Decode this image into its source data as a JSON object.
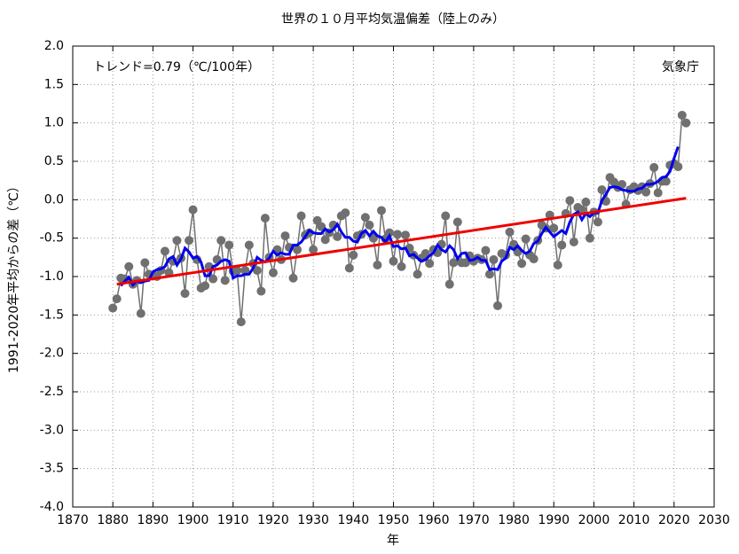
{
  "chart_data": {
    "type": "line",
    "title": "世界の１０月平均気温偏差（陸上のみ）",
    "annotations": [
      "トレンド=0.79（℃/100年）",
      "気象庁"
    ],
    "ylabel": "1991-2020年平均からの差（℃）",
    "xlabel": "年",
    "x": [
      1880,
      1881,
      1882,
      1883,
      1884,
      1885,
      1886,
      1887,
      1888,
      1889,
      1890,
      1891,
      1892,
      1893,
      1894,
      1895,
      1896,
      1897,
      1898,
      1899,
      1900,
      1901,
      1902,
      1903,
      1904,
      1905,
      1906,
      1907,
      1908,
      1909,
      1910,
      1911,
      1912,
      1913,
      1914,
      1915,
      1916,
      1917,
      1918,
      1919,
      1920,
      1921,
      1922,
      1923,
      1924,
      1925,
      1926,
      1927,
      1928,
      1929,
      1930,
      1931,
      1932,
      1933,
      1934,
      1935,
      1936,
      1937,
      1938,
      1939,
      1940,
      1941,
      1942,
      1943,
      1944,
      1945,
      1946,
      1947,
      1948,
      1949,
      1950,
      1951,
      1952,
      1953,
      1954,
      1955,
      1956,
      1957,
      1958,
      1959,
      1960,
      1961,
      1962,
      1963,
      1964,
      1965,
      1966,
      1967,
      1968,
      1969,
      1970,
      1971,
      1972,
      1973,
      1974,
      1975,
      1976,
      1977,
      1978,
      1979,
      1980,
      1981,
      1982,
      1983,
      1984,
      1985,
      1986,
      1987,
      1988,
      1989,
      1990,
      1991,
      1992,
      1993,
      1994,
      1995,
      1996,
      1997,
      1998,
      1999,
      2000,
      2001,
      2002,
      2003,
      2004,
      2005,
      2006,
      2007,
      2008,
      2009,
      2010,
      2011,
      2012,
      2013,
      2014,
      2015,
      2016,
      2017,
      2018,
      2019,
      2020,
      2021,
      2022,
      2023
    ],
    "series": [
      {
        "color": "#707070",
        "marker": true,
        "values": [
          -1.41,
          -1.29,
          -1.02,
          -1.03,
          -0.87,
          -1.1,
          -1.05,
          -1.48,
          -0.82,
          -0.97,
          -0.98,
          -1.0,
          -0.92,
          -0.67,
          -0.95,
          -0.8,
          -0.53,
          -0.76,
          -1.22,
          -0.53,
          -0.13,
          -0.78,
          -1.15,
          -1.12,
          -0.87,
          -1.03,
          -0.78,
          -0.53,
          -1.05,
          -0.59,
          -0.93,
          -0.92,
          -1.59,
          -0.92,
          -0.59,
          -0.83,
          -0.92,
          -1.19,
          -0.24,
          -0.75,
          -0.95,
          -0.65,
          -0.78,
          -0.47,
          -0.62,
          -1.02,
          -0.65,
          -0.21,
          -0.46,
          -0.43,
          -0.65,
          -0.27,
          -0.35,
          -0.52,
          -0.43,
          -0.33,
          -0.48,
          -0.21,
          -0.17,
          -0.89,
          -0.72,
          -0.47,
          -0.45,
          -0.23,
          -0.33,
          -0.5,
          -0.85,
          -0.14,
          -0.51,
          -0.43,
          -0.8,
          -0.45,
          -0.87,
          -0.46,
          -0.63,
          -0.72,
          -0.97,
          -0.76,
          -0.7,
          -0.83,
          -0.65,
          -0.69,
          -0.58,
          -0.21,
          -1.1,
          -0.82,
          -0.29,
          -0.82,
          -0.82,
          -0.73,
          -0.8,
          -0.76,
          -0.78,
          -0.66,
          -0.97,
          -0.78,
          -1.38,
          -0.7,
          -0.72,
          -0.42,
          -0.58,
          -0.68,
          -0.83,
          -0.51,
          -0.72,
          -0.77,
          -0.53,
          -0.33,
          -0.37,
          -0.2,
          -0.37,
          -0.85,
          -0.59,
          -0.18,
          -0.01,
          -0.55,
          -0.1,
          -0.13,
          -0.03,
          -0.5,
          -0.16,
          -0.29,
          0.13,
          -0.02,
          0.29,
          0.23,
          0.16,
          0.2,
          -0.06,
          0.13,
          0.17,
          0.12,
          0.17,
          0.1,
          0.21,
          0.42,
          0.09,
          0.24,
          0.24,
          0.45,
          0.47,
          0.43,
          1.1,
          1.0
        ]
      },
      {
        "color": "#0000ee",
        "values": [
          null,
          null,
          -1.12,
          -1.06,
          -1.01,
          -1.11,
          -1.06,
          -1.08,
          -1.06,
          -1.05,
          -0.94,
          -0.91,
          -0.9,
          -0.87,
          -0.77,
          -0.74,
          -0.85,
          -0.77,
          -0.63,
          -0.68,
          -0.76,
          -0.74,
          -0.81,
          -0.99,
          -0.99,
          -0.87,
          -0.85,
          -0.8,
          -0.78,
          -0.8,
          -1.02,
          -0.99,
          -0.99,
          -0.97,
          -0.97,
          -0.89,
          -0.75,
          -0.79,
          -0.81,
          -0.76,
          -0.67,
          -0.72,
          -0.69,
          -0.71,
          -0.71,
          -0.59,
          -0.59,
          -0.55,
          -0.48,
          -0.4,
          -0.43,
          -0.44,
          -0.44,
          -0.38,
          -0.42,
          -0.39,
          -0.32,
          -0.42,
          -0.49,
          -0.49,
          -0.54,
          -0.55,
          -0.44,
          -0.4,
          -0.47,
          -0.41,
          -0.47,
          -0.49,
          -0.55,
          -0.47,
          -0.61,
          -0.6,
          -0.64,
          -0.63,
          -0.73,
          -0.71,
          -0.76,
          -0.8,
          -0.78,
          -0.73,
          -0.69,
          -0.59,
          -0.65,
          -0.68,
          -0.6,
          -0.65,
          -0.77,
          -0.7,
          -0.69,
          -0.79,
          -0.78,
          -0.75,
          -0.79,
          -0.79,
          -0.91,
          -0.9,
          -0.91,
          -0.8,
          -0.76,
          -0.62,
          -0.65,
          -0.6,
          -0.66,
          -0.7,
          -0.67,
          -0.57,
          -0.54,
          -0.44,
          -0.36,
          -0.42,
          -0.48,
          -0.44,
          -0.4,
          -0.44,
          -0.29,
          -0.19,
          -0.16,
          -0.26,
          -0.18,
          -0.22,
          -0.17,
          -0.17,
          -0.01,
          0.07,
          0.16,
          0.17,
          0.16,
          0.13,
          0.12,
          0.11,
          0.11,
          0.14,
          0.15,
          0.2,
          0.2,
          0.21,
          0.24,
          0.29,
          0.3,
          0.37,
          0.54,
          0.69,
          null,
          null
        ]
      },
      {
        "color": "#ee0000",
        "x": [
          1881,
          2023
        ],
        "values": [
          -1.1,
          0.02
        ]
      }
    ],
    "xlim": [
      1870,
      2030
    ],
    "xticks": [
      1870,
      1880,
      1890,
      1900,
      1910,
      1920,
      1930,
      1940,
      1950,
      1960,
      1970,
      1980,
      1990,
      2000,
      2010,
      2020,
      2030
    ],
    "ylim": [
      -4.0,
      2.0
    ],
    "yticks": [
      {
        "value": 2.0,
        "label": "2.0"
      },
      {
        "value": 1.5,
        "label": "1.5"
      },
      {
        "value": 1.0,
        "label": "1.0"
      },
      {
        "value": 0.5,
        "label": "0.5"
      },
      {
        "value": 0,
        "label": "0.0"
      },
      {
        "value": -0.5,
        "label": "-0.5"
      },
      {
        "value": -1.0,
        "label": "-1.0"
      },
      {
        "value": -1.5,
        "label": "-1.5"
      },
      {
        "value": -2.0,
        "label": "-2.0"
      },
      {
        "value": -2.5,
        "label": "-2.5"
      },
      {
        "value": -3.0,
        "label": "-3.0"
      },
      {
        "value": -3.5,
        "label": "-3.5"
      },
      {
        "value": -4.0,
        "label": "-4.0"
      }
    ],
    "grid": true
  }
}
